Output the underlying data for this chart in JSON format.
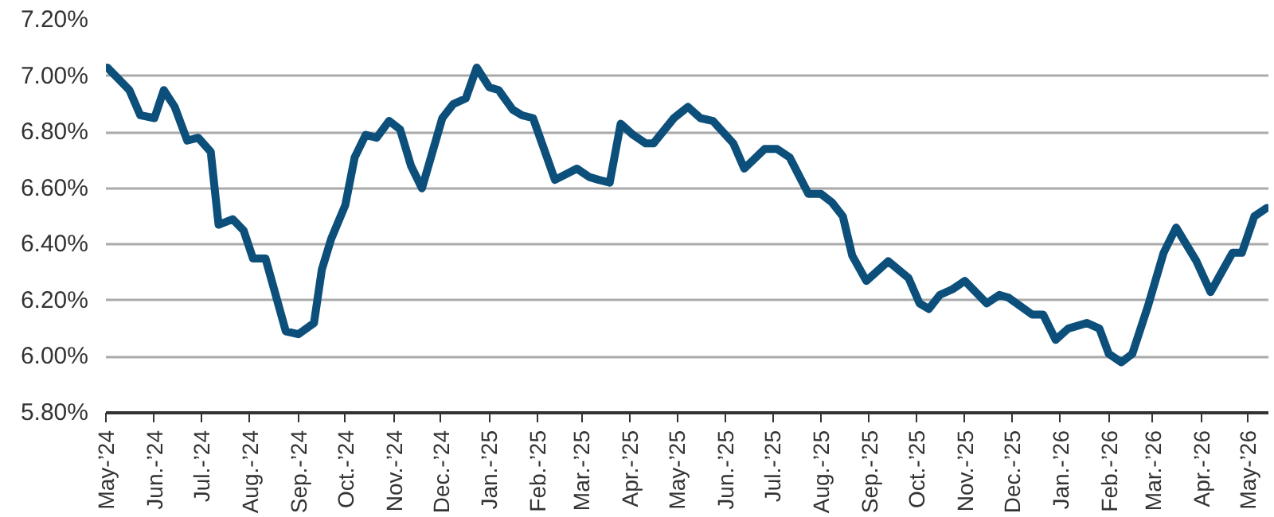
{
  "chart_data": {
    "type": "line",
    "x": [
      "2024-05-02",
      "2024-05-16",
      "2024-05-23",
      "2024-06-01",
      "2024-06-07",
      "2024-06-14",
      "2024-06-22",
      "2024-06-29",
      "2024-07-07",
      "2024-07-12",
      "2024-07-21",
      "2024-07-28",
      "2024-08-03",
      "2024-08-11",
      "2024-08-24",
      "2024-09-01",
      "2024-09-11",
      "2024-09-16",
      "2024-09-22",
      "2024-10-01",
      "2024-10-07",
      "2024-10-14",
      "2024-10-21",
      "2024-10-29",
      "2024-11-05",
      "2024-11-12",
      "2024-11-19",
      "2024-12-02",
      "2024-12-09",
      "2024-12-17",
      "2024-12-24",
      "2025-01-01",
      "2025-01-07",
      "2025-01-16",
      "2025-01-22",
      "2025-01-29",
      "2025-02-12",
      "2025-02-26",
      "2025-03-06",
      "2025-03-12",
      "2025-03-19",
      "2025-03-26",
      "2025-04-03",
      "2025-04-11",
      "2025-04-16",
      "2025-04-29",
      "2025-05-08",
      "2025-05-16",
      "2025-05-24",
      "2025-06-06",
      "2025-06-13",
      "2025-06-26",
      "2025-07-04",
      "2025-07-12",
      "2025-07-24",
      "2025-08-01",
      "2025-08-08",
      "2025-08-15",
      "2025-08-21",
      "2025-08-30",
      "2025-09-13",
      "2025-09-26",
      "2025-10-03",
      "2025-10-09",
      "2025-10-16",
      "2025-10-24",
      "2025-11-01",
      "2025-11-15",
      "2025-11-23",
      "2025-11-29",
      "2025-12-14",
      "2025-12-21",
      "2025-12-29",
      "2026-01-06",
      "2026-01-18",
      "2026-01-26",
      "2026-02-01",
      "2026-02-09",
      "2026-02-16",
      "2026-02-26",
      "2026-03-08",
      "2026-03-16",
      "2026-03-29",
      "2026-04-07",
      "2026-04-15",
      "2026-04-21",
      "2026-04-27",
      "2026-05-05",
      "2026-05-13"
    ],
    "series": [
      {
        "color": "#0b4f7a",
        "values": [
          7.03,
          6.95,
          6.86,
          6.85,
          6.95,
          6.89,
          6.77,
          6.78,
          6.73,
          6.47,
          6.49,
          6.45,
          6.35,
          6.35,
          6.09,
          6.08,
          6.12,
          6.31,
          6.42,
          6.54,
          6.71,
          6.79,
          6.78,
          6.84,
          6.81,
          6.68,
          6.6,
          6.85,
          6.9,
          6.92,
          7.03,
          6.96,
          6.95,
          6.88,
          6.86,
          6.85,
          6.63,
          6.67,
          6.64,
          6.63,
          6.62,
          6.83,
          6.79,
          6.76,
          6.76,
          6.85,
          6.89,
          6.85,
          6.84,
          6.76,
          6.67,
          6.74,
          6.74,
          6.71,
          6.58,
          6.58,
          6.55,
          6.5,
          6.36,
          6.27,
          6.34,
          6.28,
          6.19,
          6.17,
          6.22,
          6.24,
          6.27,
          6.19,
          6.22,
          6.21,
          6.15,
          6.15,
          6.06,
          6.1,
          6.12,
          6.1,
          6.01,
          5.98,
          6.01,
          6.18,
          6.37,
          6.46,
          6.34,
          6.23,
          6.31,
          6.37,
          6.37,
          6.5,
          6.53
        ]
      }
    ],
    "xlim": [
      "2024-05-01",
      "2026-05-14"
    ],
    "xticks": [
      {
        "value": "2024-05-01",
        "label": "May-’24"
      },
      {
        "value": "2024-06-01",
        "label": "Jun.-’24"
      },
      {
        "value": "2024-07-01",
        "label": "Jul.-’24"
      },
      {
        "value": "2024-08-01",
        "label": "Aug.-’24"
      },
      {
        "value": "2024-09-01",
        "label": "Sep.-’24"
      },
      {
        "value": "2024-10-01",
        "label": "Oct.-’24"
      },
      {
        "value": "2024-11-01",
        "label": "Nov.-’24"
      },
      {
        "value": "2024-12-01",
        "label": "Dec.-’24"
      },
      {
        "value": "2025-01-01",
        "label": "Jan.-’25"
      },
      {
        "value": "2025-02-01",
        "label": "Feb.-’25"
      },
      {
        "value": "2025-03-01",
        "label": "Mar.-’25"
      },
      {
        "value": "2025-04-01",
        "label": "Apr.-’25"
      },
      {
        "value": "2025-05-01",
        "label": "May-’25"
      },
      {
        "value": "2025-06-01",
        "label": "Jun.-’25"
      },
      {
        "value": "2025-07-01",
        "label": "Jul.-’25"
      },
      {
        "value": "2025-08-01",
        "label": "Aug.-’25"
      },
      {
        "value": "2025-09-01",
        "label": "Sep.-’25"
      },
      {
        "value": "2025-10-01",
        "label": "Oct.-’25"
      },
      {
        "value": "2025-11-01",
        "label": "Nov.-’25"
      },
      {
        "value": "2025-12-01",
        "label": "Dec.-’25"
      },
      {
        "value": "2026-01-01",
        "label": "Jan.-’26"
      },
      {
        "value": "2026-02-01",
        "label": "Feb.-’26"
      },
      {
        "value": "2026-03-01",
        "label": "Mar.-’26"
      },
      {
        "value": "2026-04-01",
        "label": "Apr.-’26"
      },
      {
        "value": "2026-05-01",
        "label": "May-’26"
      }
    ],
    "ylim": [
      5.8,
      7.2
    ],
    "yticks": [
      {
        "value": 5.8,
        "label": "5.80%"
      },
      {
        "value": 6.0,
        "label": "6.00%"
      },
      {
        "value": 6.2,
        "label": "6.20%"
      },
      {
        "value": 6.4,
        "label": "6.40%"
      },
      {
        "value": 6.6,
        "label": "6.60%"
      },
      {
        "value": 6.8,
        "label": "6.80%"
      },
      {
        "value": 7.0,
        "label": "7.00%"
      },
      {
        "value": 7.2,
        "label": "7.20%"
      }
    ],
    "grid": "y",
    "marker": "none",
    "line_style": "solid"
  }
}
